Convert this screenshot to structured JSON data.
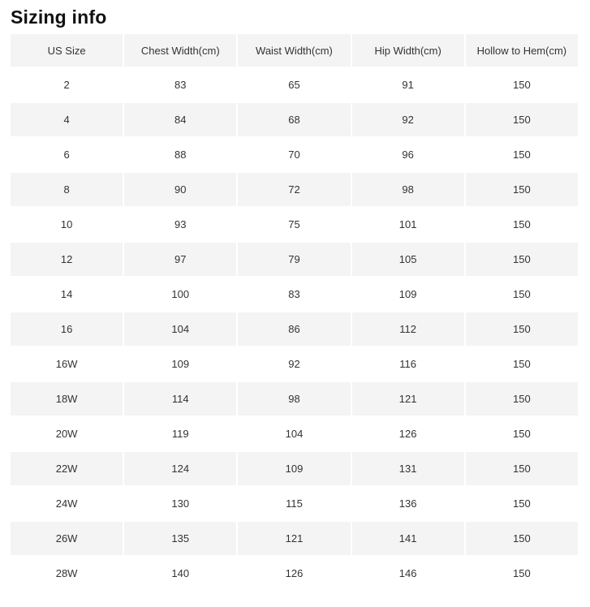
{
  "page": {
    "title": "Sizing info"
  },
  "table": {
    "columns": [
      "US Size",
      "Chest Width(cm)",
      "Waist Width(cm)",
      "Hip Width(cm)",
      "Hollow to Hem(cm)"
    ],
    "rows": [
      [
        "2",
        "83",
        "65",
        "91",
        "150"
      ],
      [
        "4",
        "84",
        "68",
        "92",
        "150"
      ],
      [
        "6",
        "88",
        "70",
        "96",
        "150"
      ],
      [
        "8",
        "90",
        "72",
        "98",
        "150"
      ],
      [
        "10",
        "93",
        "75",
        "101",
        "150"
      ],
      [
        "12",
        "97",
        "79",
        "105",
        "150"
      ],
      [
        "14",
        "100",
        "83",
        "109",
        "150"
      ],
      [
        "16",
        "104",
        "86",
        "112",
        "150"
      ],
      [
        "16W",
        "109",
        "92",
        "116",
        "150"
      ],
      [
        "18W",
        "114",
        "98",
        "121",
        "150"
      ],
      [
        "20W",
        "119",
        "104",
        "126",
        "150"
      ],
      [
        "22W",
        "124",
        "109",
        "131",
        "150"
      ],
      [
        "24W",
        "130",
        "115",
        "136",
        "150"
      ],
      [
        "26W",
        "135",
        "121",
        "141",
        "150"
      ],
      [
        "28W",
        "140",
        "126",
        "146",
        "150"
      ]
    ],
    "colors": {
      "header_bg": "#f4f4f4",
      "alt_row_bg": "#f4f4f4",
      "cell_text": "#333333",
      "title_text": "#111111"
    }
  }
}
